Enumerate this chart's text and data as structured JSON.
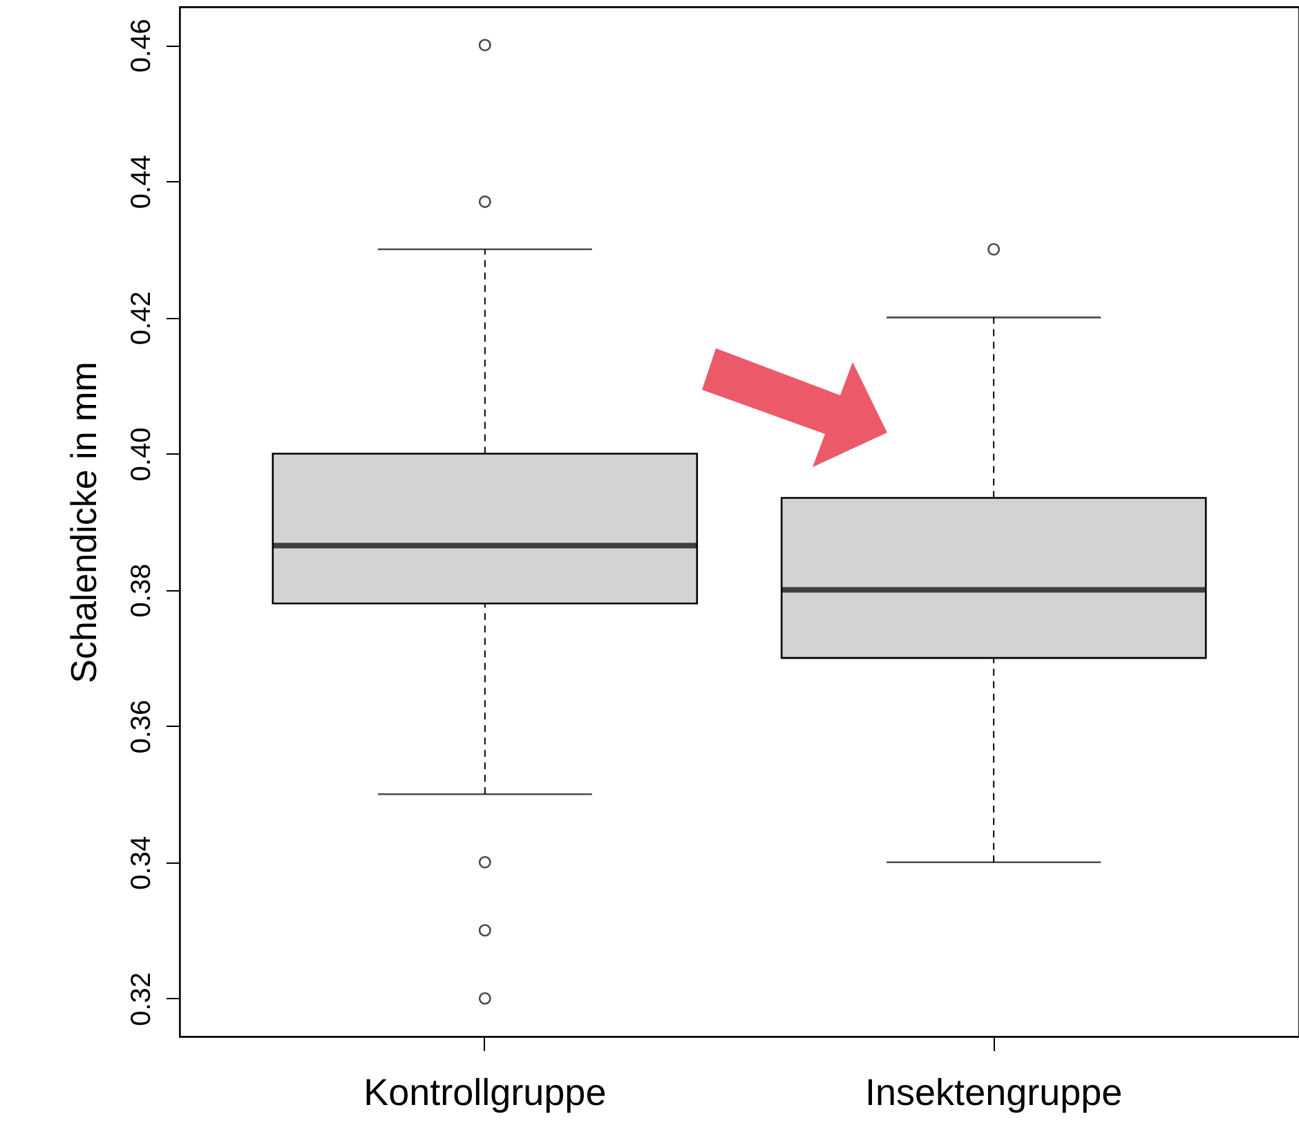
{
  "chart_data": {
    "type": "box",
    "ylabel": "Schalendicke in mm",
    "categories": [
      "Kontrollgruppe",
      "Insektengruppe"
    ],
    "boxes": [
      {
        "low": 0.35,
        "q1": 0.378,
        "median": 0.3865,
        "q3": 0.4,
        "high": 0.43,
        "outliers": [
          0.46,
          0.437,
          0.34,
          0.33,
          0.32
        ]
      },
      {
        "low": 0.34,
        "q1": 0.37,
        "median": 0.38,
        "q3": 0.3935,
        "high": 0.42,
        "outliers": [
          0.43
        ]
      }
    ],
    "ylim": [
      0.3144,
      0.4656
    ],
    "yticks": [
      0.32,
      0.34,
      0.36,
      0.38,
      {
        "value": 0.4,
        "label": "0.40"
      },
      0.42,
      0.44,
      0.46
    ],
    "grid": false,
    "marker": "circle"
  }
}
